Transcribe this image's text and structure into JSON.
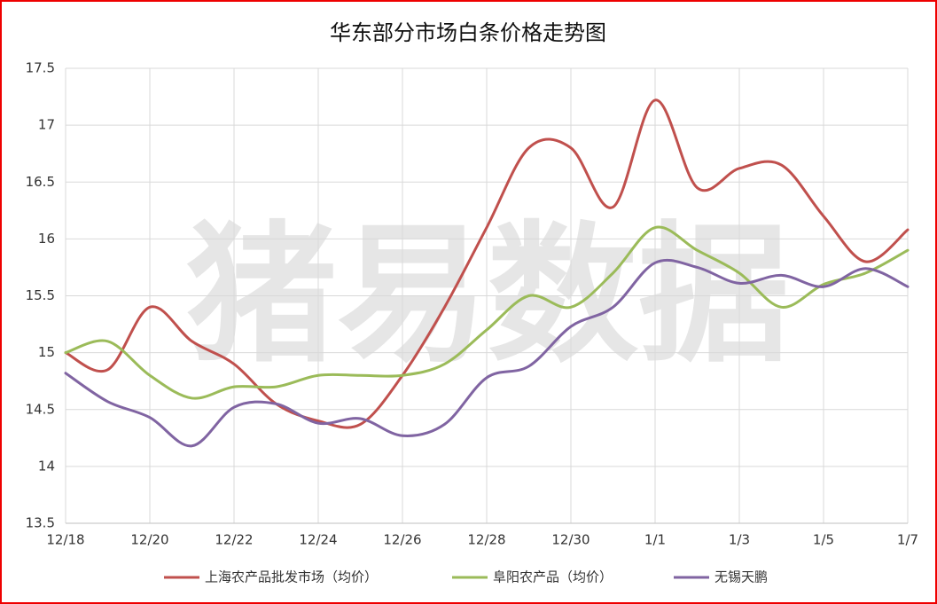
{
  "chart_data": {
    "type": "line",
    "title": "华东部分市场白条价格走势图",
    "watermark": "猪易数据",
    "categories": [
      "12/18",
      null,
      "12/20",
      null,
      "12/22",
      null,
      "12/24",
      null,
      "12/26",
      null,
      "12/28",
      null,
      "12/30",
      null,
      "1/1",
      null,
      "1/3",
      null,
      "1/5",
      null,
      "1/7"
    ],
    "series": [
      {
        "name": "上海农产品批发市场（均价）",
        "color": "#c0504d",
        "values": [
          15.0,
          14.85,
          15.4,
          15.1,
          14.9,
          14.55,
          14.4,
          14.37,
          14.8,
          15.4,
          16.1,
          16.8,
          16.8,
          16.28,
          17.22,
          16.45,
          16.62,
          16.65,
          16.2,
          15.8,
          16.08
        ]
      },
      {
        "name": "阜阳农产品（均价）",
        "color": "#9bbb59",
        "values": [
          15.0,
          15.1,
          14.8,
          14.6,
          14.7,
          14.7,
          14.8,
          14.8,
          14.8,
          14.9,
          15.2,
          15.5,
          15.4,
          15.7,
          16.1,
          15.9,
          15.7,
          15.4,
          15.6,
          15.7,
          15.9
        ]
      },
      {
        "name": "无锡天鹏",
        "color": "#8064a2",
        "values": [
          14.82,
          14.57,
          14.43,
          14.18,
          14.52,
          14.55,
          14.38,
          14.42,
          14.27,
          14.37,
          14.78,
          14.88,
          15.23,
          15.4,
          15.79,
          15.75,
          15.61,
          15.68,
          15.58,
          15.74,
          15.58
        ]
      }
    ],
    "ylim": [
      13.5,
      17.5
    ],
    "yticks": [
      13.5,
      14,
      14.5,
      15,
      15.5,
      16,
      16.5,
      17,
      17.5
    ],
    "grid": true,
    "legend": "bottom"
  }
}
